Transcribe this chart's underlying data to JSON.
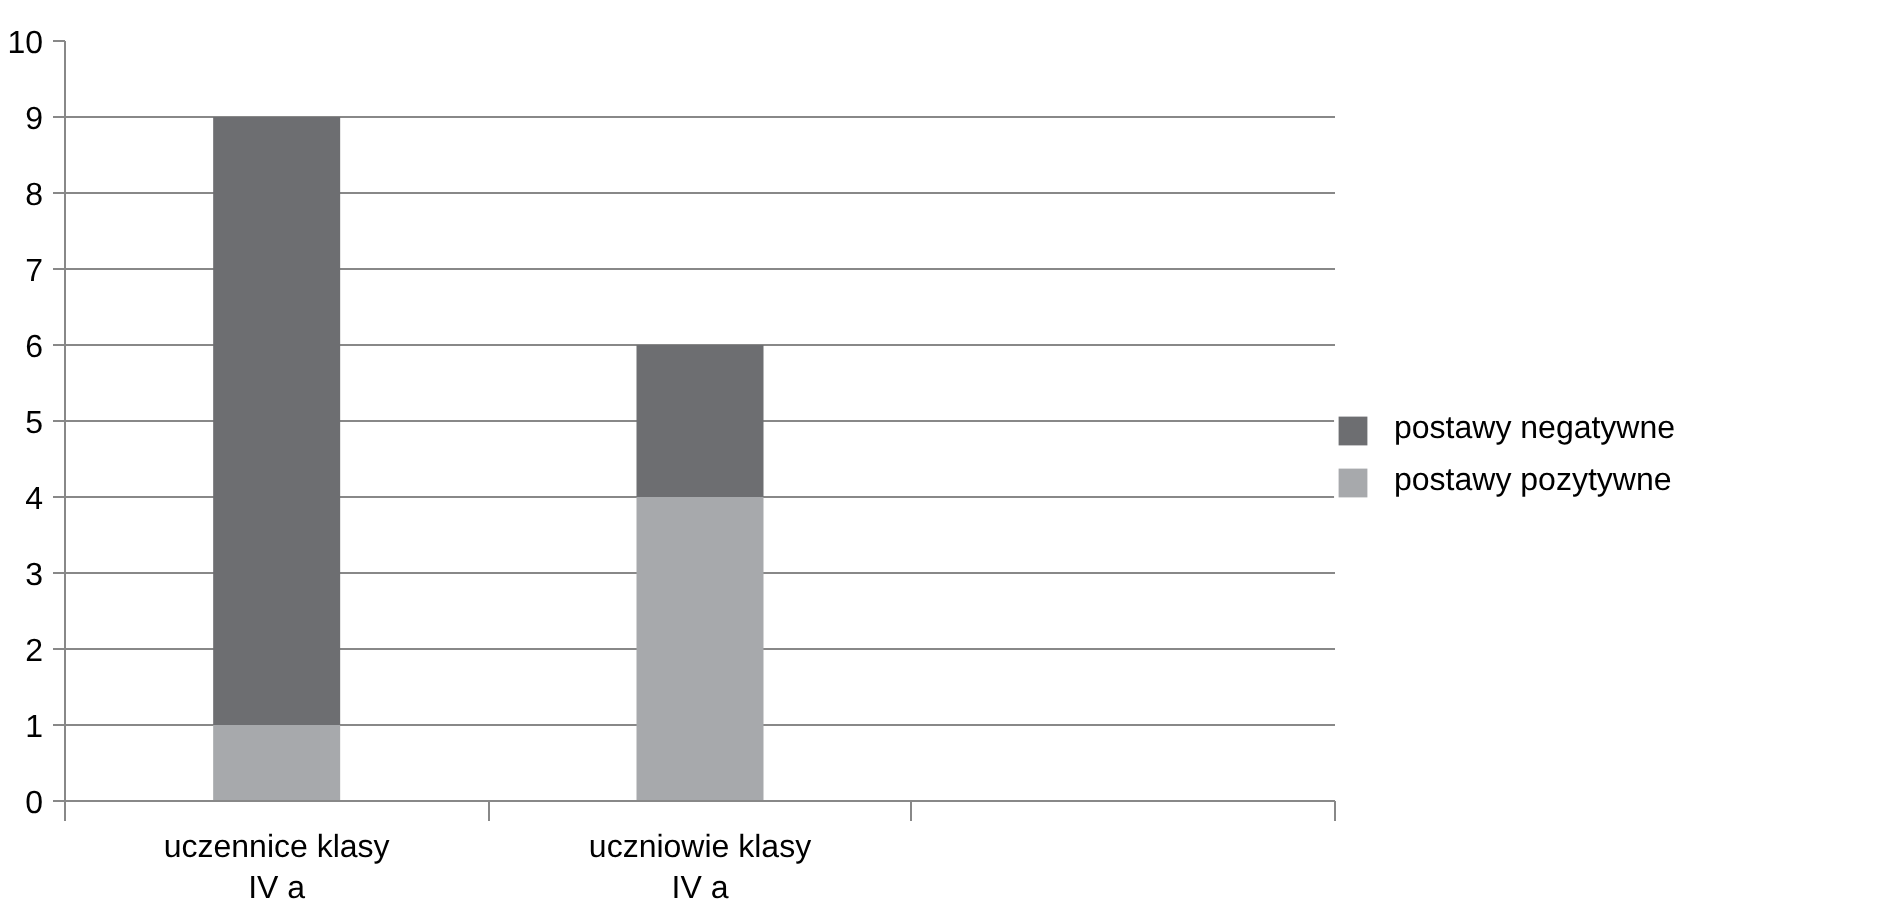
{
  "chart_data": {
    "type": "bar",
    "stacked": true,
    "categories": [
      "uczennice klasy\nIV a",
      "uczniowie klasy\nIV a",
      null
    ],
    "series": [
      {
        "name": "postawy pozytywne",
        "color": "#a7a9ac",
        "values": [
          1,
          4,
          null
        ]
      },
      {
        "name": "postawy negatywne",
        "color": "#6d6e71",
        "values": [
          8,
          2,
          null
        ]
      }
    ],
    "ylim": [
      0,
      10
    ],
    "yticks": [
      0,
      1,
      2,
      3,
      4,
      5,
      6,
      7,
      8,
      9,
      10
    ],
    "grid": "y",
    "legend": "right"
  }
}
